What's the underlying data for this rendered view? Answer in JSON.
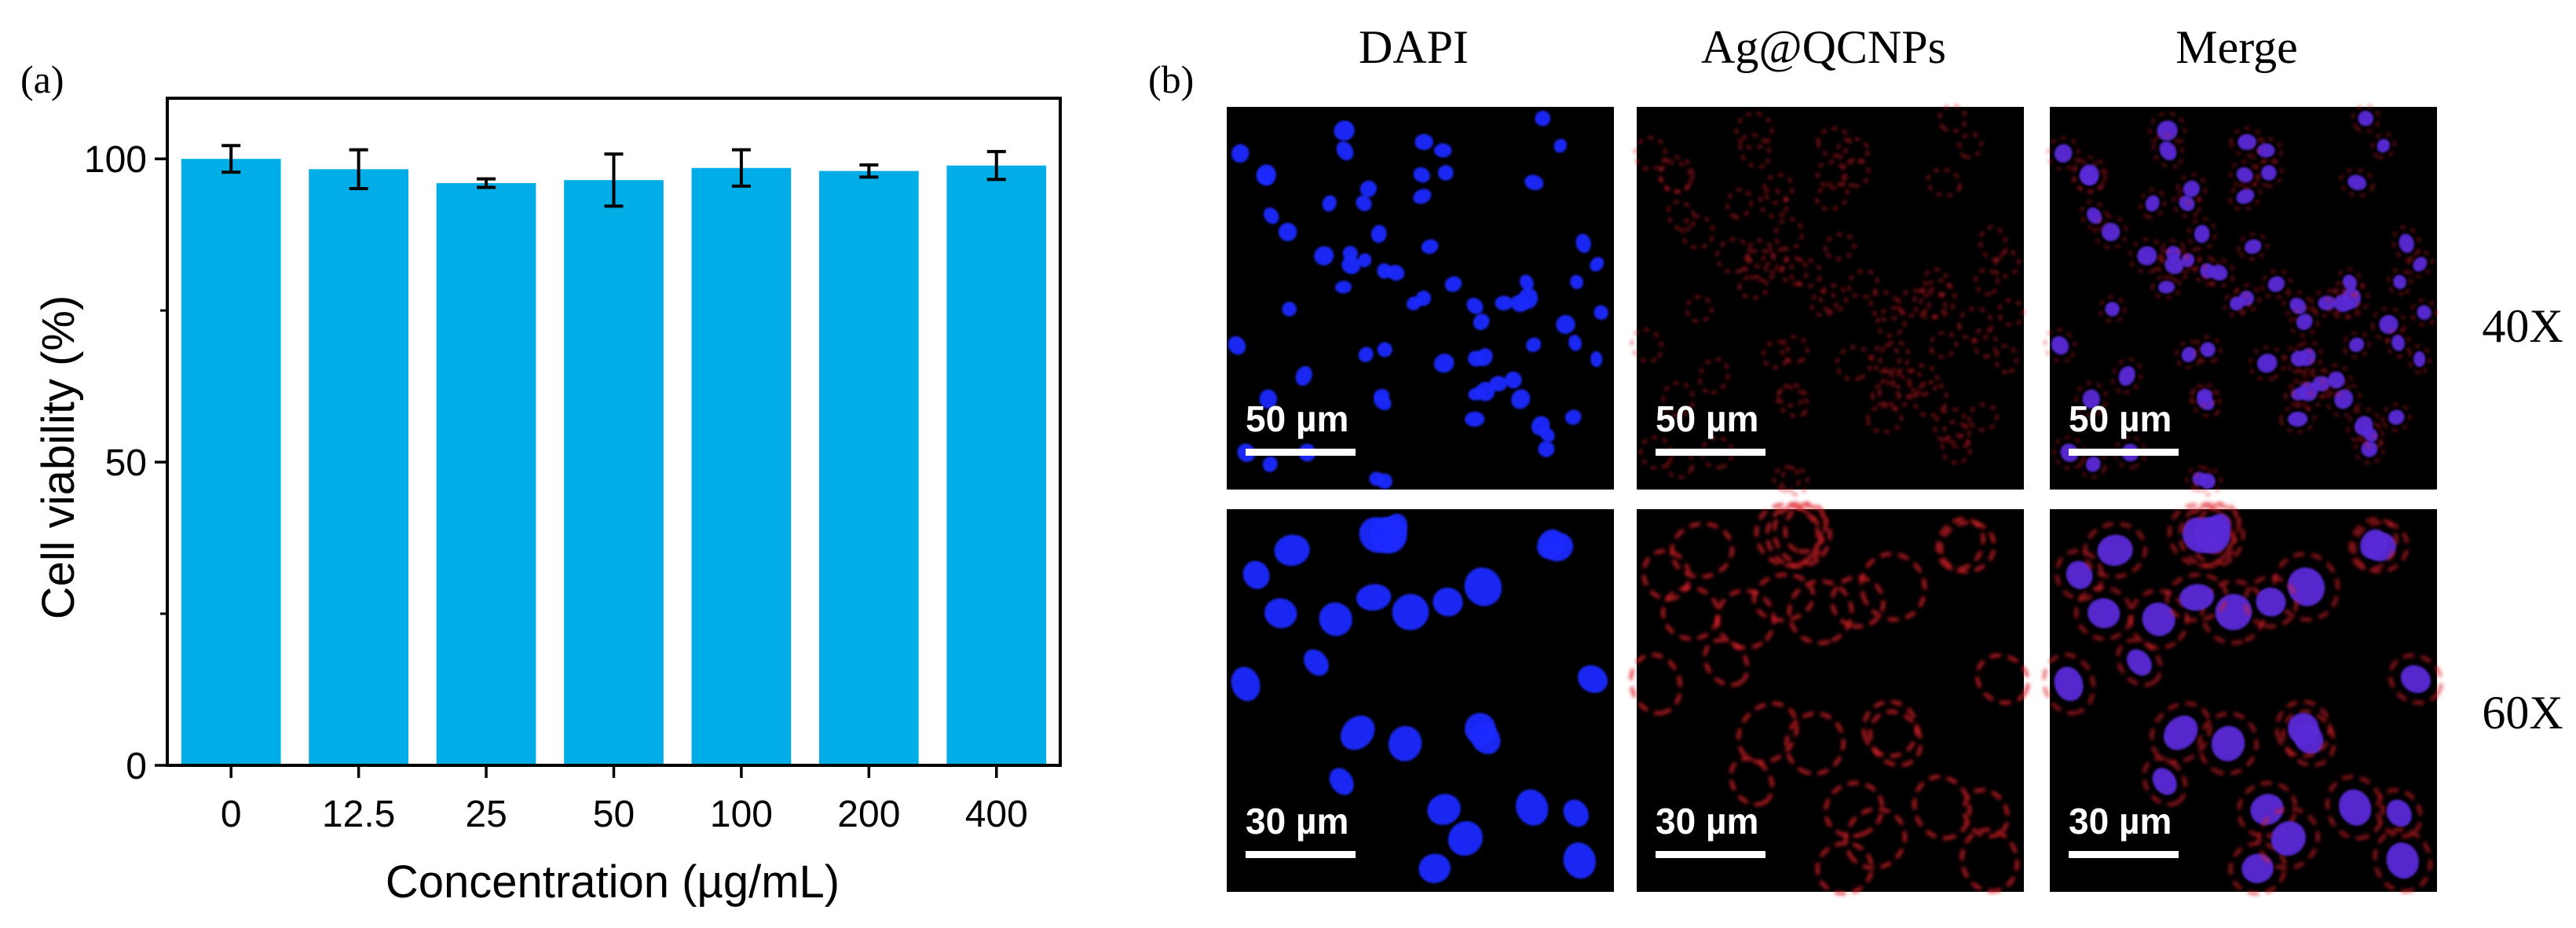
{
  "figure": {
    "panel_a_label": "(a)",
    "panel_b_label": "(b)"
  },
  "chart_data": {
    "type": "bar",
    "xlabel": "Concentration (µg/mL)",
    "ylabel": "Cell viability (%)",
    "categories": [
      "0",
      "12.5",
      "25",
      "50",
      "100",
      "200",
      "400"
    ],
    "values": [
      100,
      98.3,
      96.0,
      96.5,
      98.5,
      98.0,
      98.9
    ],
    "errors": [
      2.2,
      3.2,
      0.7,
      4.3,
      3.0,
      1.0,
      2.3
    ],
    "ylim": [
      0,
      110
    ],
    "yticks": [
      0,
      50,
      100
    ],
    "bar_color": "#00ADE6",
    "grid": false
  },
  "microscopy": {
    "columns": [
      "DAPI",
      "Ag@QCNPs",
      "Merge"
    ],
    "rows": [
      {
        "label": "40X",
        "scale_bar": "50 µm"
      },
      {
        "label": "60X",
        "scale_bar": "30 µm"
      }
    ],
    "colors": {
      "dapi": "#1a2bff",
      "ag": "#e0202a",
      "merge_body": "#5a2ad8"
    }
  }
}
